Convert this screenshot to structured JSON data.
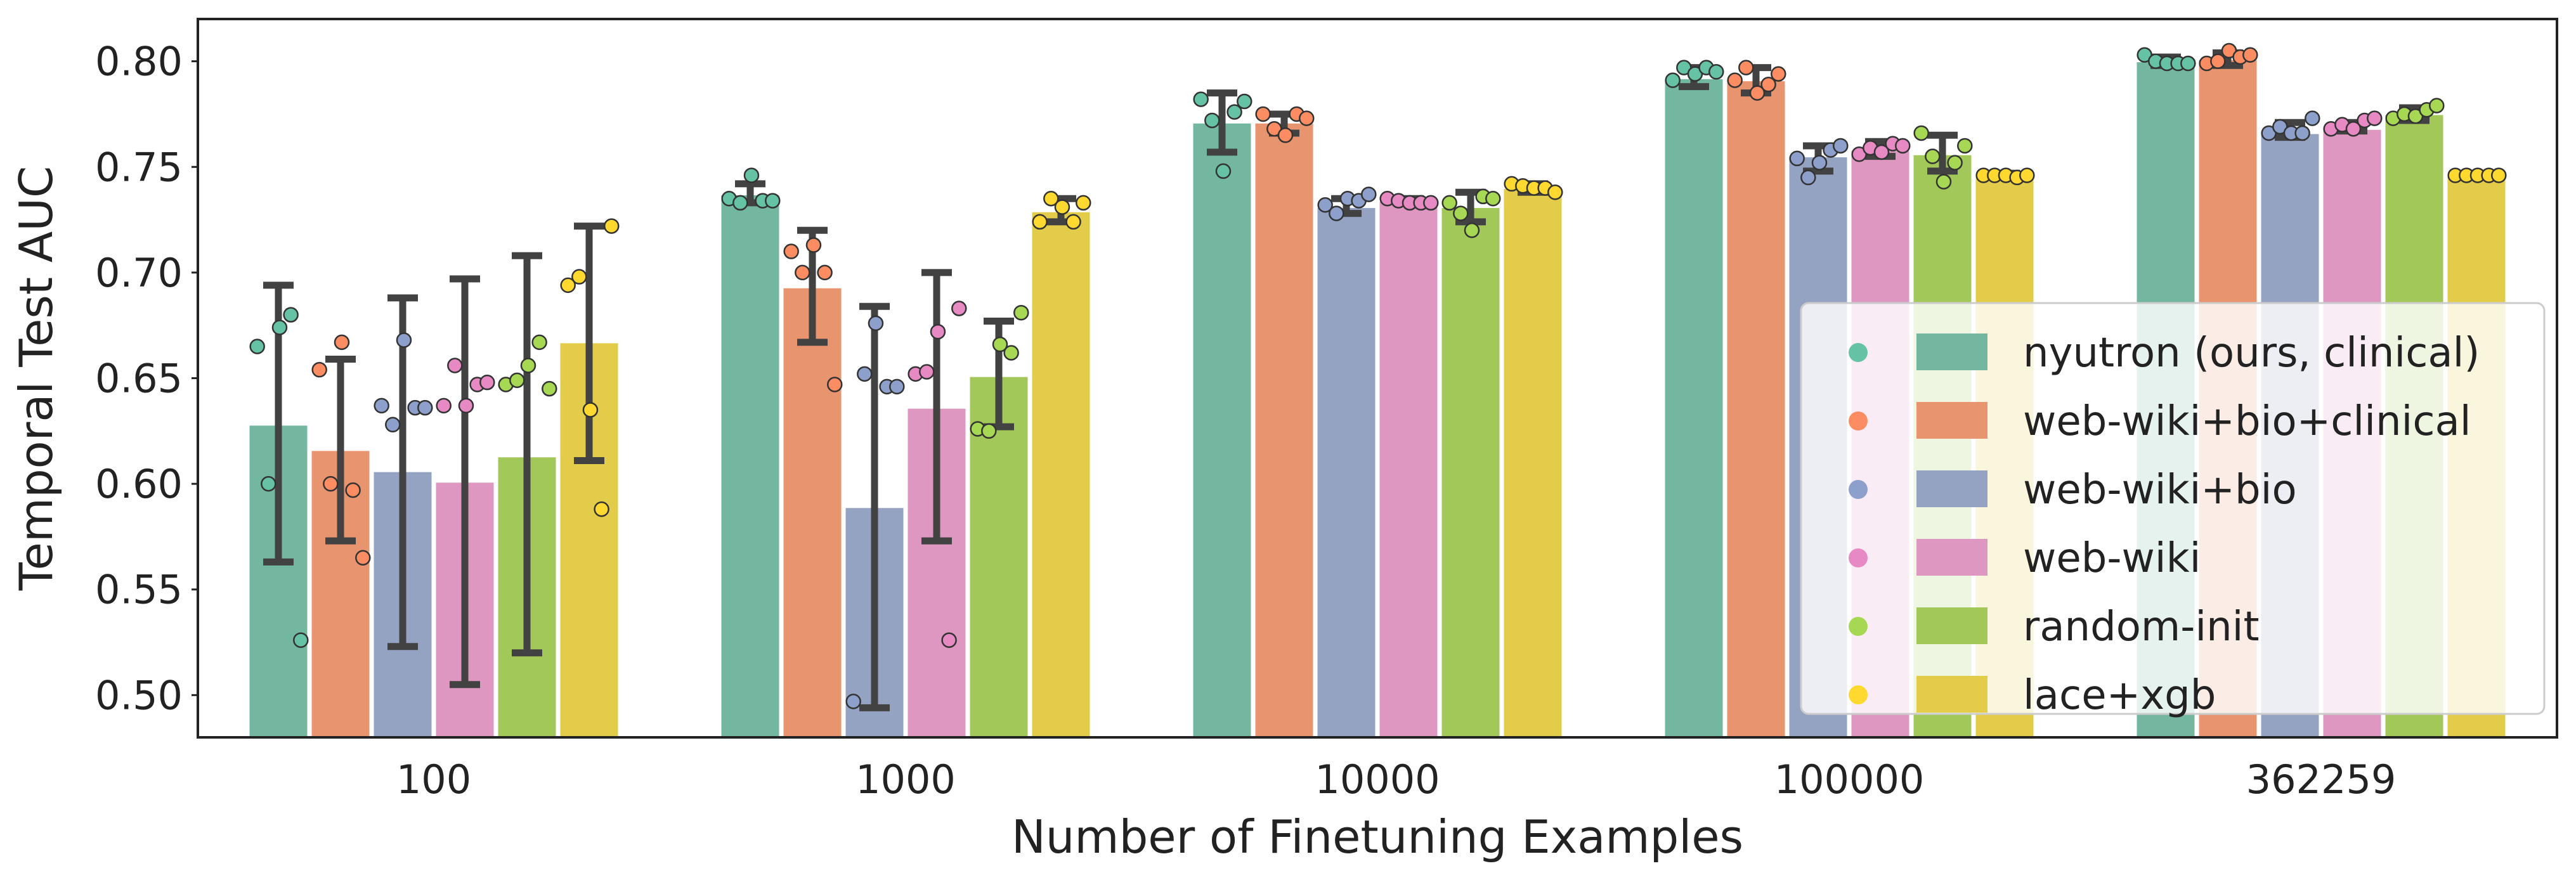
{
  "chart_data": {
    "type": "bar",
    "title": "",
    "xlabel": "Number of Finetuning Examples",
    "ylabel": "Temporal Test AUC",
    "ylim": [
      0.48,
      0.82
    ],
    "yticks": [
      "0.50",
      "0.55",
      "0.60",
      "0.65",
      "0.70",
      "0.75",
      "0.80"
    ],
    "categories": [
      "100",
      "1000",
      "10000",
      "100000",
      "362259"
    ],
    "grid": false,
    "legend_position": "bottom-right",
    "series": [
      {
        "name": "nyutron (ours, clinical)",
        "bar_color": "#73b7a1",
        "point_color": "#66c2a5",
        "values": [
          0.628,
          0.737,
          0.771,
          0.792,
          0.8
        ],
        "err_low": [
          0.563,
          0.733,
          0.757,
          0.788,
          0.798
        ],
        "err_high": [
          0.694,
          0.742,
          0.785,
          0.797,
          0.802
        ],
        "points": [
          [
            0.665,
            0.6,
            0.674,
            0.68,
            0.526
          ],
          [
            0.735,
            0.733,
            0.746,
            0.734,
            0.734
          ],
          [
            0.782,
            0.772,
            0.748,
            0.776,
            0.781
          ],
          [
            0.791,
            0.797,
            0.794,
            0.797,
            0.795
          ],
          [
            0.803,
            0.8,
            0.799,
            0.799,
            0.799
          ]
        ]
      },
      {
        "name": "web-wiki+bio+clinical",
        "bar_color": "#e8946f",
        "point_color": "#fc8d62",
        "values": [
          0.616,
          0.693,
          0.771,
          0.791,
          0.801
        ],
        "err_low": [
          0.573,
          0.667,
          0.766,
          0.785,
          0.798
        ],
        "err_high": [
          0.659,
          0.72,
          0.775,
          0.797,
          0.804
        ],
        "points": [
          [
            0.654,
            0.6,
            0.667,
            0.597,
            0.565
          ],
          [
            0.71,
            0.7,
            0.713,
            0.7,
            0.647
          ],
          [
            0.775,
            0.768,
            0.765,
            0.775,
            0.773
          ],
          [
            0.791,
            0.797,
            0.785,
            0.789,
            0.794
          ],
          [
            0.799,
            0.8,
            0.805,
            0.802,
            0.803
          ]
        ]
      },
      {
        "name": "web-wiki+bio",
        "bar_color": "#95a3c3",
        "point_color": "#8da0cb",
        "values": [
          0.606,
          0.589,
          0.731,
          0.755,
          0.766
        ],
        "err_low": [
          0.523,
          0.494,
          0.728,
          0.748,
          0.764
        ],
        "err_high": [
          0.688,
          0.684,
          0.735,
          0.76,
          0.771
        ],
        "points": [
          [
            0.637,
            0.628,
            0.668,
            0.636,
            0.636
          ],
          [
            0.497,
            0.652,
            0.676,
            0.646,
            0.646
          ],
          [
            0.732,
            0.728,
            0.735,
            0.734,
            0.737
          ],
          [
            0.754,
            0.745,
            0.752,
            0.758,
            0.76
          ],
          [
            0.766,
            0.769,
            0.766,
            0.766,
            0.773
          ]
        ]
      },
      {
        "name": "web-wiki",
        "bar_color": "#de97c0",
        "point_color": "#e78ac3",
        "values": [
          0.601,
          0.636,
          0.734,
          0.758,
          0.768
        ],
        "err_low": [
          0.505,
          0.573,
          0.733,
          0.755,
          0.767
        ],
        "err_high": [
          0.697,
          0.7,
          0.735,
          0.762,
          0.771
        ],
        "points": [
          [
            0.637,
            0.656,
            0.637,
            0.647,
            0.648
          ],
          [
            0.652,
            0.653,
            0.672,
            0.526,
            0.683
          ],
          [
            0.735,
            0.734,
            0.733,
            0.733,
            0.733
          ],
          [
            0.756,
            0.759,
            0.757,
            0.761,
            0.76
          ],
          [
            0.768,
            0.77,
            0.768,
            0.772,
            0.773
          ]
        ]
      },
      {
        "name": "random-init",
        "bar_color": "#a2c85a",
        "point_color": "#a6d854",
        "values": [
          0.613,
          0.651,
          0.731,
          0.756,
          0.775
        ],
        "err_low": [
          0.52,
          0.627,
          0.724,
          0.748,
          0.772
        ],
        "err_high": [
          0.708,
          0.677,
          0.738,
          0.765,
          0.778
        ],
        "points": [
          [
            0.647,
            0.649,
            0.656,
            0.667,
            0.645
          ],
          [
            0.626,
            0.625,
            0.666,
            0.662,
            0.681
          ],
          [
            0.733,
            0.728,
            0.72,
            0.736,
            0.735
          ],
          [
            0.766,
            0.755,
            0.743,
            0.752,
            0.76
          ],
          [
            0.773,
            0.775,
            0.774,
            0.777,
            0.779
          ]
        ]
      },
      {
        "name": "lace+xgb",
        "bar_color": "#e3cc4a",
        "point_color": "#ffd92f",
        "values": [
          0.667,
          0.729,
          0.74,
          0.746,
          0.746
        ],
        "err_low": [
          0.611,
          0.724,
          0.738,
          0.745,
          0.745
        ],
        "err_high": [
          0.722,
          0.735,
          0.742,
          0.747,
          0.747
        ],
        "points": [
          [
            0.694,
            0.698,
            0.635,
            0.588,
            0.722
          ],
          [
            0.724,
            0.735,
            0.731,
            0.724,
            0.733
          ],
          [
            0.742,
            0.741,
            0.74,
            0.74,
            0.738
          ],
          [
            0.746,
            0.746,
            0.746,
            0.745,
            0.746
          ],
          [
            0.746,
            0.746,
            0.746,
            0.746,
            0.746
          ]
        ]
      }
    ]
  }
}
